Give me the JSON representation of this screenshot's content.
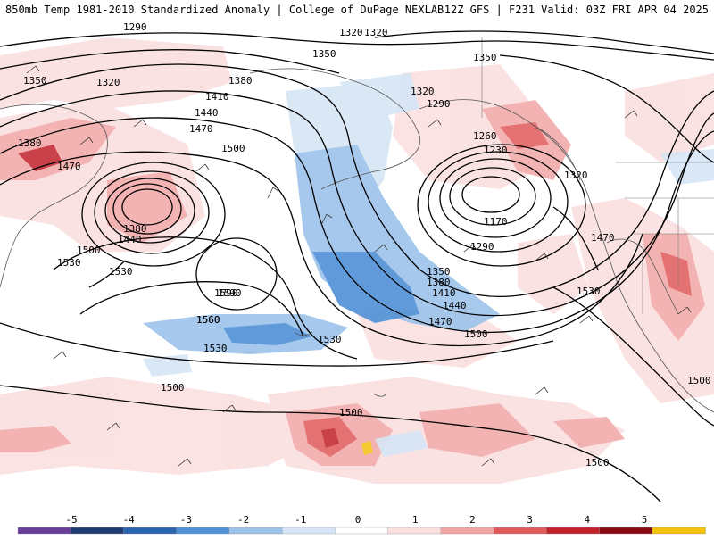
{
  "header": {
    "left_title": "850mb Temp 1981-2010 Standardized Anomaly | College of DuPage NEXLAB",
    "right_title": "12Z GFS | F231 Valid: 03Z FRI APR 04 2025"
  },
  "colorbar": {
    "tick_labels": [
      "-5",
      "-4",
      "-3",
      "-2",
      "-1",
      "0",
      "1",
      "2",
      "3",
      "4",
      "5"
    ],
    "colors": [
      "#6a3d9a",
      "#1f3b73",
      "#2a64b0",
      "#4f90d6",
      "#9cc3ea",
      "#d6e6f6",
      "#ffffff",
      "#fbdede",
      "#f2a6a6",
      "#e05a5a",
      "#c0202a",
      "#8a0a14",
      "#f4c20d"
    ]
  },
  "contours": {
    "labels": [
      "1290",
      "1320",
      "1350",
      "1380",
      "1410",
      "1440",
      "1470",
      "1500",
      "1530",
      "1560",
      "1590",
      "1260",
      "1230",
      "1170",
      "1320",
      "1350",
      "1380",
      "1410",
      "1440",
      "1470",
      "1500",
      "1530",
      "1500",
      "1290",
      "1350",
      "1320",
      "1380",
      "1470",
      "1440",
      "1380",
      "1500",
      "1530",
      "1590",
      "1560",
      "1530",
      "1500",
      "1500",
      "1500",
      "1470",
      "1530",
      "1320",
      "1290",
      "1350",
      "1320"
    ]
  }
}
